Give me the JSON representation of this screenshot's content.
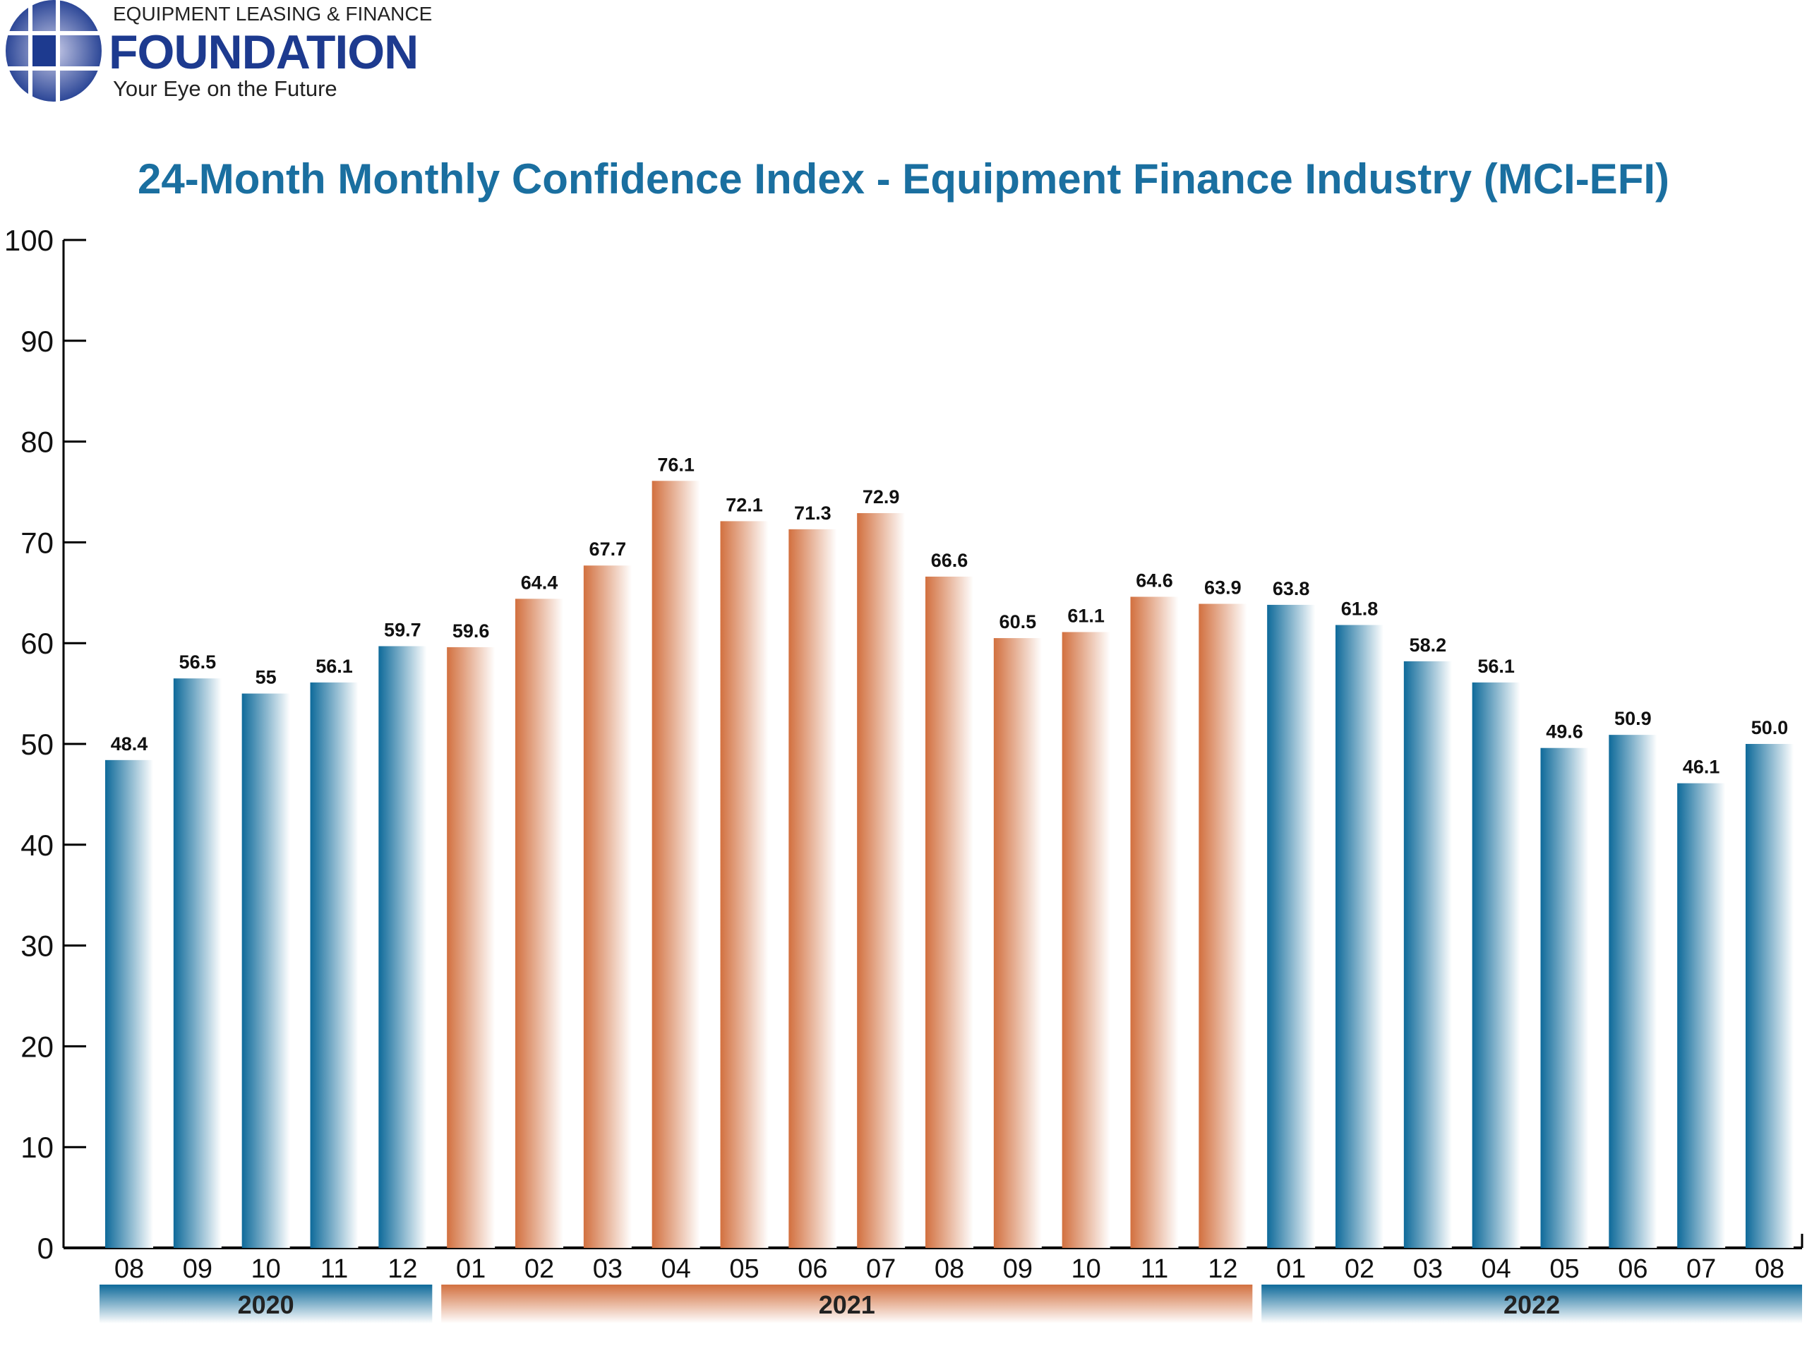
{
  "logo": {
    "line1": "EQUIPMENT LEASING & FINANCE",
    "line2": "FOUNDATION",
    "tagline": "Your Eye on the Future"
  },
  "chart_data": {
    "type": "bar",
    "title": "24-Month Monthly Confidence Index - Equipment Finance Industry (MCI-EFI)",
    "xlabel": "",
    "ylabel": "",
    "ylim": [
      0,
      100
    ],
    "yticks": [
      0,
      10,
      20,
      30,
      40,
      50,
      60,
      70,
      80,
      90,
      100
    ],
    "grid": false,
    "categories": [
      "08",
      "09",
      "10",
      "11",
      "12",
      "01",
      "02",
      "03",
      "04",
      "05",
      "06",
      "07",
      "08",
      "09",
      "10",
      "11",
      "12",
      "01",
      "02",
      "03",
      "04",
      "05",
      "06",
      "07",
      "08"
    ],
    "years": [
      {
        "label": "2020",
        "count": 5,
        "color": "#0e6a9a"
      },
      {
        "label": "2021",
        "count": 12,
        "color": "#d2703f"
      },
      {
        "label": "2022",
        "count": 8,
        "color": "#0e6a9a"
      }
    ],
    "values": [
      48.4,
      56.5,
      55,
      56.1,
      59.7,
      59.6,
      64.4,
      67.7,
      76.1,
      72.1,
      71.3,
      72.9,
      66.6,
      60.5,
      61.1,
      64.6,
      63.9,
      63.8,
      61.8,
      58.2,
      56.1,
      49.6,
      50.9,
      46.1,
      50.0
    ],
    "data_labels": [
      "48.4",
      "56.5",
      "55",
      "56.1",
      "59.7",
      "59.6",
      "64.4",
      "67.7",
      "76.1",
      "72.1",
      "71.3",
      "72.9",
      "66.6",
      "60.5",
      "61.1",
      "64.6",
      "63.9",
      "63.8",
      "61.8",
      "58.2",
      "56.1",
      "49.6",
      "50.9",
      "46.1",
      "50.0"
    ]
  }
}
